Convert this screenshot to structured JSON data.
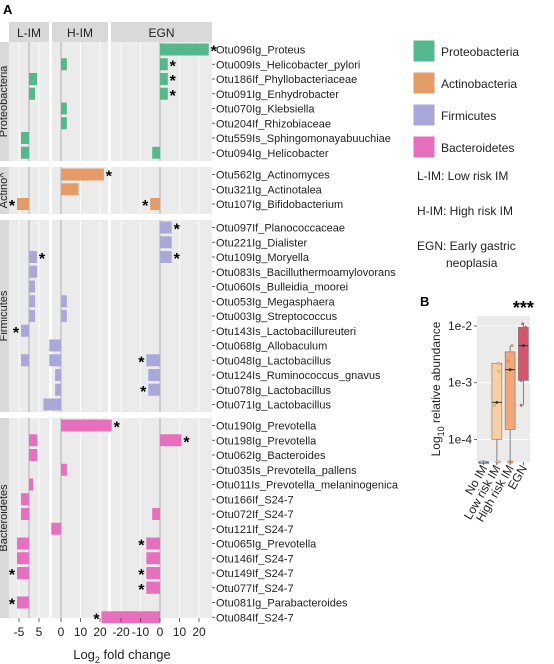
{
  "panel_a_label": "A",
  "panel_b_label": "B",
  "chart_data": [
    {
      "type": "bar",
      "orientation": "horizontal",
      "facets": [
        "L-IM",
        "H-IM",
        "EGN"
      ],
      "facet_ticks": [
        [
          -5,
          5
        ],
        [
          0,
          10,
          20
        ],
        [
          -20,
          -10,
          0,
          10,
          20
        ]
      ],
      "xlabel_main": "Log",
      "xlabel_sub": "2",
      "xlabel_tail": " fold change",
      "groups": [
        {
          "name": "Proteobacteria",
          "color": "#55b88c",
          "otus": [
            {
              "name": "Otu096Ig_Proteus",
              "values": [
                0,
                0,
                25
              ],
              "stars": [
                0,
                0,
                1
              ]
            },
            {
              "name": "Otu009Is_Helicobacter_pylori",
              "values": [
                0,
                3,
                4
              ],
              "stars": [
                0,
                0,
                1
              ]
            },
            {
              "name": "Otu186If_Phyllobacteriaceae",
              "values": [
                4,
                0,
                4
              ],
              "stars": [
                0,
                0,
                1
              ]
            },
            {
              "name": "Otu091Ig_Enhydrobacter",
              "values": [
                3,
                0,
                4
              ],
              "stars": [
                0,
                0,
                1
              ]
            },
            {
              "name": "Otu070Ig_Klebsiella",
              "values": [
                0,
                3,
                0
              ],
              "stars": [
                0,
                0,
                0
              ]
            },
            {
              "name": "Otu204If_Rhizobiaceae",
              "values": [
                0,
                3,
                0
              ],
              "stars": [
                0,
                0,
                0
              ]
            },
            {
              "name": "Otu559Is_Sphingomonayabuuchiae",
              "values": [
                -4,
                0,
                0
              ],
              "stars": [
                0,
                0,
                0
              ]
            },
            {
              "name": "Otu094Ig_Helicobacter",
              "values": [
                -4,
                0,
                -4
              ],
              "stars": [
                0,
                0,
                0
              ]
            }
          ]
        },
        {
          "name": "Actinobacteria",
          "color": "#e59b66",
          "otus": [
            {
              "name": "Otu562Ig_Actinomyces",
              "values": [
                0,
                22,
                0
              ],
              "stars": [
                0,
                1,
                0
              ]
            },
            {
              "name": "Otu321Ig_Actinotalea",
              "values": [
                0,
                9,
                0
              ],
              "stars": [
                0,
                0,
                0
              ]
            },
            {
              "name": "Otu107Ig_Bifidobacterium",
              "values": [
                -6,
                0,
                -5
              ],
              "stars": [
                1,
                0,
                1
              ]
            }
          ]
        },
        {
          "name": "Firmicutes",
          "color": "#a9a8d8",
          "otus": [
            {
              "name": "Otu097If_Planococcaceae",
              "values": [
                0,
                0,
                6
              ],
              "stars": [
                0,
                0,
                1
              ]
            },
            {
              "name": "Otu221Ig_Dialister",
              "values": [
                0,
                0,
                6
              ],
              "stars": [
                0,
                0,
                0
              ]
            },
            {
              "name": "Otu109Ig_Moryella",
              "values": [
                4,
                0,
                6
              ],
              "stars": [
                1,
                0,
                1
              ]
            },
            {
              "name": "Otu083Is_Bacilluthermoamylovorans",
              "values": [
                4,
                0,
                0
              ],
              "stars": [
                0,
                0,
                0
              ]
            },
            {
              "name": "Otu060Is_Bulleidia_moorei",
              "values": [
                3,
                0,
                0
              ],
              "stars": [
                0,
                0,
                0
              ]
            },
            {
              "name": "Otu053Ig_Megasphaera",
              "values": [
                3,
                3,
                0
              ],
              "stars": [
                0,
                0,
                0
              ]
            },
            {
              "name": "Otu003Ig_Streptococcus",
              "values": [
                3,
                3,
                0
              ],
              "stars": [
                0,
                0,
                0
              ]
            },
            {
              "name": "Otu143Is_Lactobacillureuteri",
              "values": [
                -4,
                0,
                0
              ],
              "stars": [
                1,
                0,
                0
              ]
            },
            {
              "name": "Otu068Ig_Allobaculum",
              "values": [
                0,
                -6,
                0
              ],
              "stars": [
                0,
                0,
                0
              ]
            },
            {
              "name": "Otu048Ig_Lactobacillus",
              "values": [
                -4,
                -6,
                -7
              ],
              "stars": [
                0,
                0,
                1
              ]
            },
            {
              "name": "Otu124Is_Ruminococcus_gnavus",
              "values": [
                0,
                -3,
                -6
              ],
              "stars": [
                0,
                0,
                0
              ]
            },
            {
              "name": "Otu078Ig_Lactobacillus",
              "values": [
                0,
                -3,
                -6
              ],
              "stars": [
                0,
                0,
                1
              ]
            },
            {
              "name": "Otu071Ig_Lactobacillus",
              "values": [
                0,
                -9,
                0
              ],
              "stars": [
                0,
                0,
                0
              ]
            }
          ]
        },
        {
          "name": "Bacteroidetes",
          "color": "#e66fbe",
          "otus": [
            {
              "name": "Otu190Ig_Prevotella",
              "values": [
                0,
                26,
                0
              ],
              "stars": [
                0,
                1,
                0
              ]
            },
            {
              "name": "Otu198Ig_Prevotella",
              "values": [
                4,
                0,
                11
              ],
              "stars": [
                0,
                0,
                1
              ]
            },
            {
              "name": "Otu062Ig_Bacteroides",
              "values": [
                4,
                0,
                0
              ],
              "stars": [
                0,
                0,
                0
              ]
            },
            {
              "name": "Otu035Is_Prevotella_pallens",
              "values": [
                0,
                3,
                0
              ],
              "stars": [
                0,
                0,
                0
              ]
            },
            {
              "name": "Otu011Is_Prevotella_melaninogenica",
              "values": [
                2,
                0,
                0
              ],
              "stars": [
                0,
                0,
                0
              ]
            },
            {
              "name": "Otu166If_S24-7",
              "values": [
                -4,
                0,
                0
              ],
              "stars": [
                0,
                0,
                0
              ]
            },
            {
              "name": "Otu072If_S24-7",
              "values": [
                -4,
                0,
                -4
              ],
              "stars": [
                0,
                0,
                0
              ]
            },
            {
              "name": "Otu121If_S24-7",
              "values": [
                0,
                -5,
                0
              ],
              "stars": [
                0,
                0,
                0
              ]
            },
            {
              "name": "Otu065Ig_Prevotella",
              "values": [
                -6,
                0,
                -7
              ],
              "stars": [
                0,
                0,
                1
              ]
            },
            {
              "name": "Otu146If_S24-7",
              "values": [
                -6,
                0,
                -7
              ],
              "stars": [
                0,
                0,
                0
              ]
            },
            {
              "name": "Otu149If_S24-7",
              "values": [
                -6,
                0,
                -7
              ],
              "stars": [
                1,
                0,
                1
              ]
            },
            {
              "name": "Otu077If_S24-7",
              "values": [
                0,
                0,
                -7
              ],
              "stars": [
                0,
                0,
                1
              ]
            },
            {
              "name": "Otu081Ig_Parabacteroides",
              "values": [
                -6,
                0,
                0
              ],
              "stars": [
                1,
                0,
                0
              ]
            },
            {
              "name": "Otu084If_S24-7",
              "values": [
                0,
                0,
                -30
              ],
              "stars": [
                0,
                0,
                1
              ]
            }
          ]
        }
      ],
      "group_strip_labels": [
        "Proteobacteria",
        "Actino^",
        "Firmicutes",
        "Bacteroidetes"
      ],
      "legend": [
        {
          "name": "Proteobacteria",
          "color": "#55b88c"
        },
        {
          "name": "Actinobacteria",
          "color": "#e59b66"
        },
        {
          "name": "Firmicutes",
          "color": "#a9a8d8"
        },
        {
          "name": "Bacteroidetes",
          "color": "#e66fbe"
        }
      ],
      "abbreviations": [
        "L-IM: Low risk IM",
        "H-IM: High risk IM",
        "EGN: Early gastric",
        "neoplasia"
      ]
    },
    {
      "type": "box",
      "ylabel_main": "Log",
      "ylabel_sub": "10",
      "ylabel_tail": " relative abundance",
      "yscale": "log",
      "ylim": [
        4e-05,
        0.015
      ],
      "ytick_labels": [
        "1e-4",
        "1e-3",
        "1e-2"
      ],
      "categories": [
        "No IM",
        "Low risk IM",
        "High risk IM",
        "EGN"
      ],
      "colors": [
        "#9fc3e3",
        "#f7cfa3",
        "#f3a676",
        "#d9556e"
      ],
      "boxes": [
        {
          "q1": 4e-05,
          "median": 4e-05,
          "q3": 4e-05,
          "mean": 4e-05
        },
        {
          "q1": 0.0001,
          "median": 0.00045,
          "q3": 0.0022,
          "mean": 0.00045
        },
        {
          "q1": 0.00015,
          "median": 0.0017,
          "q3": 0.0035,
          "mean": 0.0017
        },
        {
          "q1": 0.0011,
          "median": 0.0045,
          "q3": 0.0095,
          "mean": 0.0045
        }
      ],
      "points": [
        [
          4e-05,
          4e-05,
          4e-05,
          4e-05
        ],
        [
          4e-05,
          4e-05,
          0.0004,
          0.0022,
          0.0016
        ],
        [
          4e-05,
          4e-05,
          0.0024,
          0.0045
        ],
        [
          0.0004,
          0.0011,
          0.0075,
          0.011,
          0.0095
        ]
      ],
      "significance": "***"
    }
  ]
}
